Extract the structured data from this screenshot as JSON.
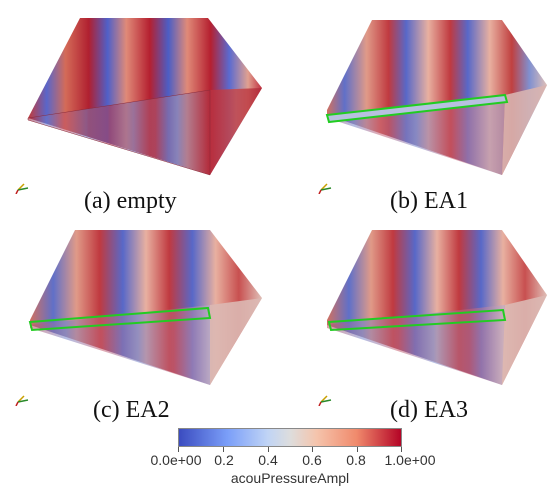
{
  "panels": [
    {
      "caption": "(a) empty",
      "has_box": false
    },
    {
      "caption": "(b) EA1",
      "has_box": true
    },
    {
      "caption": "(c) EA2",
      "has_box": true
    },
    {
      "caption": "(d) EA3",
      "has_box": true
    }
  ],
  "colorbar": {
    "title": "acouPressureAmpl",
    "ticks": [
      "0.0e+00",
      "0.2",
      "0.4",
      "0.6",
      "0.8",
      "1.0e+00"
    ],
    "range": [
      0,
      1
    ],
    "colors": [
      "#3b4cc0",
      "#dddddd",
      "#b40426"
    ]
  },
  "colors": {
    "box_outline": "#22cc22",
    "high": "#b40426",
    "low": "#3b4cc0"
  }
}
